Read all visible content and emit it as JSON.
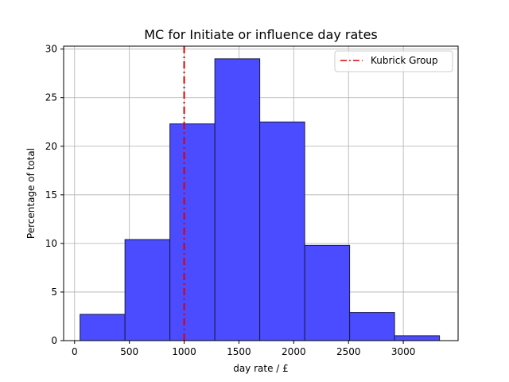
{
  "chart_data": {
    "type": "bar",
    "title": "MC for Initiate or influence day rates",
    "xlabel": "day rate / £",
    "ylabel": "Percentage of total",
    "xlim": [
      -100,
      3500
    ],
    "ylim": [
      0,
      30.3
    ],
    "xticks": [
      0,
      500,
      1000,
      1500,
      2000,
      2500,
      3000
    ],
    "yticks": [
      0,
      5,
      10,
      15,
      20,
      25,
      30
    ],
    "grid": true,
    "bin_edges": [
      50,
      460,
      870,
      1280,
      1690,
      2100,
      2510,
      2920,
      3330
    ],
    "values": [
      2.7,
      10.4,
      22.3,
      29.0,
      22.5,
      9.8,
      2.9,
      0.5
    ],
    "bar_color": "#4b4bff",
    "bar_edge_color": "#1a1a4a",
    "reference_line": {
      "name": "Kubrick Group",
      "x": 1000,
      "color": "#e00000"
    },
    "legend": {
      "position": "top-right",
      "entries": [
        "Kubrick Group"
      ]
    }
  }
}
